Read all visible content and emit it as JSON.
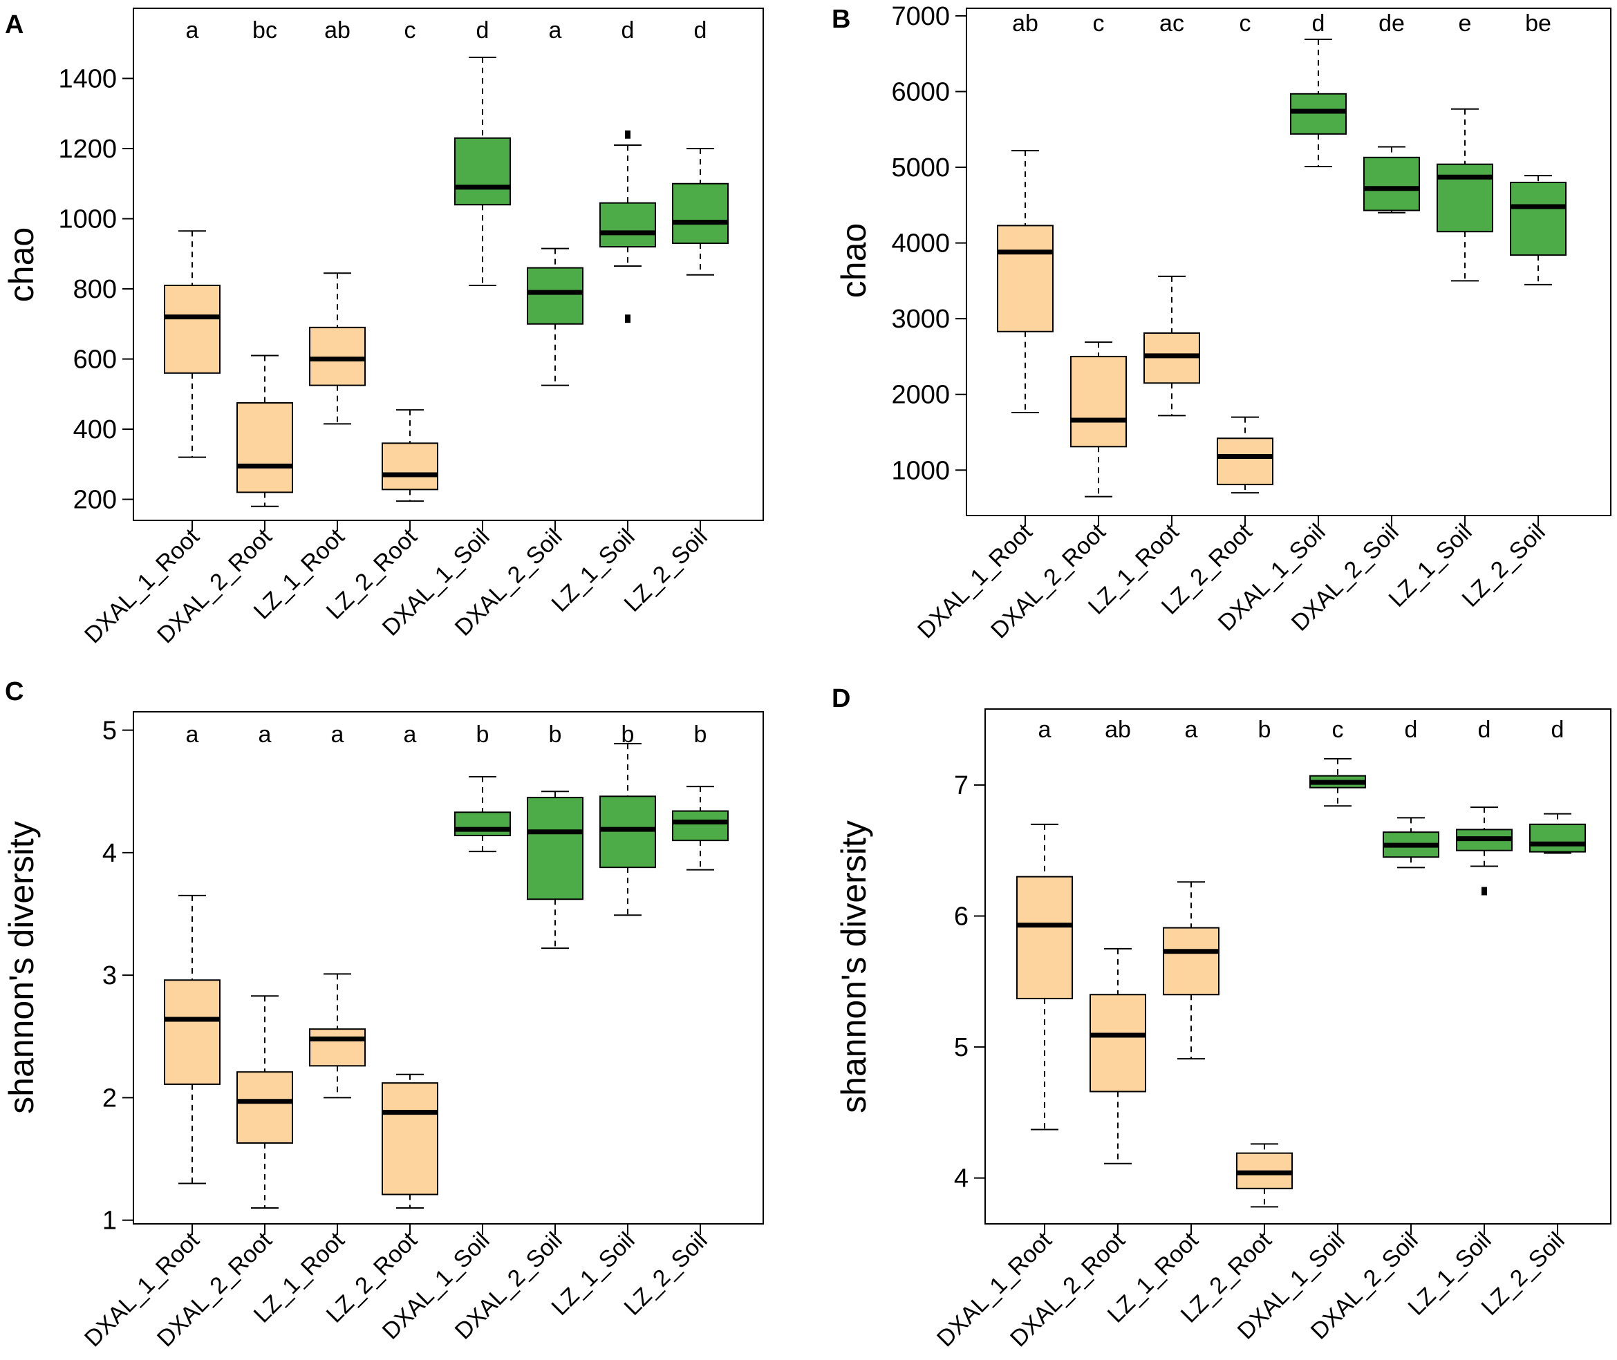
{
  "figure": {
    "root_color": "#FDD49E",
    "soil_color": "#4DAC48"
  },
  "chart_data": [
    {
      "type": "boxplot",
      "panel": "A",
      "ylabel": "chao",
      "ylim": [
        140,
        1600
      ],
      "yticks": [
        200,
        400,
        600,
        800,
        1000,
        1200,
        1400
      ],
      "categories": [
        "DXAL_1_Root",
        "DXAL_2_Root",
        "LZ_1_Root",
        "LZ_2_Root",
        "DXAL_1_Soil",
        "DXAL_2_Soil",
        "LZ_1_Soil",
        "LZ_2_Soil"
      ],
      "groups": [
        "root",
        "root",
        "root",
        "root",
        "soil",
        "soil",
        "soil",
        "soil"
      ],
      "letters": [
        "a",
        "bc",
        "ab",
        "c",
        "d",
        "a",
        "d",
        "d"
      ],
      "boxes": [
        {
          "min": 320,
          "q1": 560,
          "median": 720,
          "q3": 810,
          "max": 965,
          "outliers": []
        },
        {
          "min": 180,
          "q1": 220,
          "median": 295,
          "q3": 475,
          "max": 610,
          "outliers": []
        },
        {
          "min": 415,
          "q1": 525,
          "median": 600,
          "q3": 690,
          "max": 845,
          "outliers": []
        },
        {
          "min": 195,
          "q1": 228,
          "median": 270,
          "q3": 360,
          "max": 455,
          "outliers": []
        },
        {
          "min": 810,
          "q1": 1040,
          "median": 1090,
          "q3": 1230,
          "max": 1460,
          "outliers": []
        },
        {
          "min": 525,
          "q1": 700,
          "median": 790,
          "q3": 860,
          "max": 915,
          "outliers": []
        },
        {
          "min": 865,
          "q1": 920,
          "median": 960,
          "q3": 1045,
          "max": 1210,
          "outliers": [
            1240,
            715
          ]
        },
        {
          "min": 840,
          "q1": 930,
          "median": 990,
          "q3": 1100,
          "max": 1200,
          "outliers": []
        }
      ]
    },
    {
      "type": "boxplot",
      "panel": "B",
      "ylabel": "chao",
      "ylim": [
        400,
        7100
      ],
      "yticks": [
        1000,
        2000,
        3000,
        4000,
        5000,
        6000,
        7000
      ],
      "categories": [
        "DXAL_1_Root",
        "DXAL_2_Root",
        "LZ_1_Root",
        "LZ_2_Root",
        "DXAL_1_Soil",
        "DXAL_2_Soil",
        "LZ_1_Soil",
        "LZ_2_Soil"
      ],
      "groups": [
        "root",
        "root",
        "root",
        "root",
        "soil",
        "soil",
        "soil",
        "soil"
      ],
      "letters": [
        "ab",
        "c",
        "ac",
        "c",
        "d",
        "de",
        "e",
        "be"
      ],
      "boxes": [
        {
          "min": 1760,
          "q1": 2830,
          "median": 3880,
          "q3": 4230,
          "max": 5220,
          "outliers": []
        },
        {
          "min": 650,
          "q1": 1310,
          "median": 1660,
          "q3": 2500,
          "max": 2690,
          "outliers": []
        },
        {
          "min": 1720,
          "q1": 2150,
          "median": 2510,
          "q3": 2810,
          "max": 3560,
          "outliers": []
        },
        {
          "min": 700,
          "q1": 810,
          "median": 1180,
          "q3": 1420,
          "max": 1700,
          "outliers": []
        },
        {
          "min": 5010,
          "q1": 5440,
          "median": 5740,
          "q3": 5970,
          "max": 6690,
          "outliers": []
        },
        {
          "min": 4400,
          "q1": 4430,
          "median": 4720,
          "q3": 5130,
          "max": 5270,
          "outliers": []
        },
        {
          "min": 3500,
          "q1": 4150,
          "median": 4870,
          "q3": 5040,
          "max": 5770,
          "outliers": []
        },
        {
          "min": 3450,
          "q1": 3840,
          "median": 4480,
          "q3": 4800,
          "max": 4890,
          "outliers": []
        }
      ]
    },
    {
      "type": "boxplot",
      "panel": "C",
      "ylabel": "shannon's diversity",
      "ylim": [
        0.97,
        5.15
      ],
      "yticks": [
        1,
        2,
        3,
        4,
        5
      ],
      "categories": [
        "DXAL_1_Root",
        "DXAL_2_Root",
        "LZ_1_Root",
        "LZ_2_Root",
        "DXAL_1_Soil",
        "DXAL_2_Soil",
        "LZ_1_Soil",
        "LZ_2_Soil"
      ],
      "groups": [
        "root",
        "root",
        "root",
        "root",
        "soil",
        "soil",
        "soil",
        "soil"
      ],
      "letters": [
        "a",
        "a",
        "a",
        "a",
        "b",
        "b",
        "b",
        "b"
      ],
      "boxes": [
        {
          "min": 1.3,
          "q1": 2.11,
          "median": 2.64,
          "q3": 2.96,
          "max": 3.65,
          "outliers": []
        },
        {
          "min": 1.1,
          "q1": 1.63,
          "median": 1.97,
          "q3": 2.21,
          "max": 2.83,
          "outliers": []
        },
        {
          "min": 2.0,
          "q1": 2.26,
          "median": 2.48,
          "q3": 2.56,
          "max": 3.01,
          "outliers": []
        },
        {
          "min": 1.1,
          "q1": 1.21,
          "median": 1.88,
          "q3": 2.12,
          "max": 2.19,
          "outliers": []
        },
        {
          "min": 4.01,
          "q1": 4.14,
          "median": 4.19,
          "q3": 4.33,
          "max": 4.62,
          "outliers": []
        },
        {
          "min": 3.22,
          "q1": 3.62,
          "median": 4.17,
          "q3": 4.45,
          "max": 4.5,
          "outliers": []
        },
        {
          "min": 3.49,
          "q1": 3.88,
          "median": 4.19,
          "q3": 4.46,
          "max": 4.89,
          "outliers": []
        },
        {
          "min": 3.86,
          "q1": 4.1,
          "median": 4.25,
          "q3": 4.34,
          "max": 4.54,
          "outliers": []
        }
      ]
    },
    {
      "type": "boxplot",
      "panel": "D",
      "ylabel": "shannon's diversity",
      "ylim": [
        3.65,
        7.58
      ],
      "yticks": [
        4,
        5,
        6,
        7
      ],
      "categories": [
        "DXAL_1_Root",
        "DXAL_2_Root",
        "LZ_1_Root",
        "LZ_2_Root",
        "DXAL_1_Soil",
        "DXAL_2_Soil",
        "LZ_1_Soil",
        "LZ_2_Soil"
      ],
      "groups": [
        "root",
        "root",
        "root",
        "root",
        "soil",
        "soil",
        "soil",
        "soil"
      ],
      "letters": [
        "a",
        "ab",
        "a",
        "b",
        "c",
        "d",
        "d",
        "d"
      ],
      "boxes": [
        {
          "min": 4.37,
          "q1": 5.37,
          "median": 5.93,
          "q3": 6.3,
          "max": 6.7,
          "outliers": []
        },
        {
          "min": 4.11,
          "q1": 4.66,
          "median": 5.09,
          "q3": 5.4,
          "max": 5.75,
          "outliers": []
        },
        {
          "min": 4.91,
          "q1": 5.4,
          "median": 5.73,
          "q3": 5.91,
          "max": 6.26,
          "outliers": []
        },
        {
          "min": 3.78,
          "q1": 3.92,
          "median": 4.04,
          "q3": 4.19,
          "max": 4.26,
          "outliers": []
        },
        {
          "min": 6.84,
          "q1": 6.98,
          "median": 7.02,
          "q3": 7.07,
          "max": 7.2,
          "outliers": []
        },
        {
          "min": 6.37,
          "q1": 6.45,
          "median": 6.54,
          "q3": 6.64,
          "max": 6.75,
          "outliers": []
        },
        {
          "min": 6.38,
          "q1": 6.5,
          "median": 6.59,
          "q3": 6.66,
          "max": 6.83,
          "outliers": [
            6.19
          ]
        },
        {
          "min": 6.48,
          "q1": 6.49,
          "median": 6.55,
          "q3": 6.7,
          "max": 6.78,
          "outliers": []
        }
      ]
    }
  ]
}
